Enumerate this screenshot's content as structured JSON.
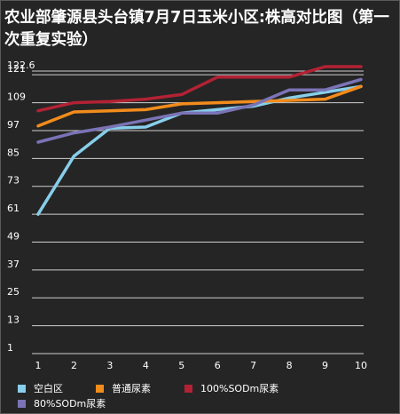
{
  "chart_data": {
    "type": "line",
    "title": "农业部肇源县头台镇7月7日玉米小区:株高对比图（第一次重复实验）",
    "x": [
      1,
      2,
      3,
      4,
      5,
      6,
      7,
      8,
      9,
      10
    ],
    "yticks": [
      "122.6",
      "121",
      "109",
      "97",
      "85",
      "73",
      "61",
      "49",
      "37",
      "25",
      "13",
      "1"
    ],
    "ylim": [
      1,
      122.6
    ],
    "grid": "horizontal",
    "legend": "bottom",
    "series": [
      {
        "name": "空白区",
        "color": "#87ceeb",
        "values": [
          61,
          86,
          98,
          98.5,
          104.5,
          106,
          107.5,
          111,
          113.5,
          116
        ]
      },
      {
        "name": "普通尿素",
        "color": "#f28c1c",
        "values": [
          99,
          105,
          105.5,
          106,
          108.5,
          109,
          109.5,
          110,
          110.5,
          116
        ]
      },
      {
        "name": "100%SODm尿素",
        "color": "#b22234",
        "values": [
          105.5,
          109,
          109.5,
          110.5,
          112.5,
          120,
          120,
          120,
          124.5,
          124.5
        ]
      },
      {
        "name": "80%SODm尿素",
        "color": "#7b73b6",
        "values": [
          92,
          96,
          98.5,
          101.5,
          104.5,
          104.5,
          108,
          114.5,
          114.5,
          119
        ]
      }
    ]
  }
}
